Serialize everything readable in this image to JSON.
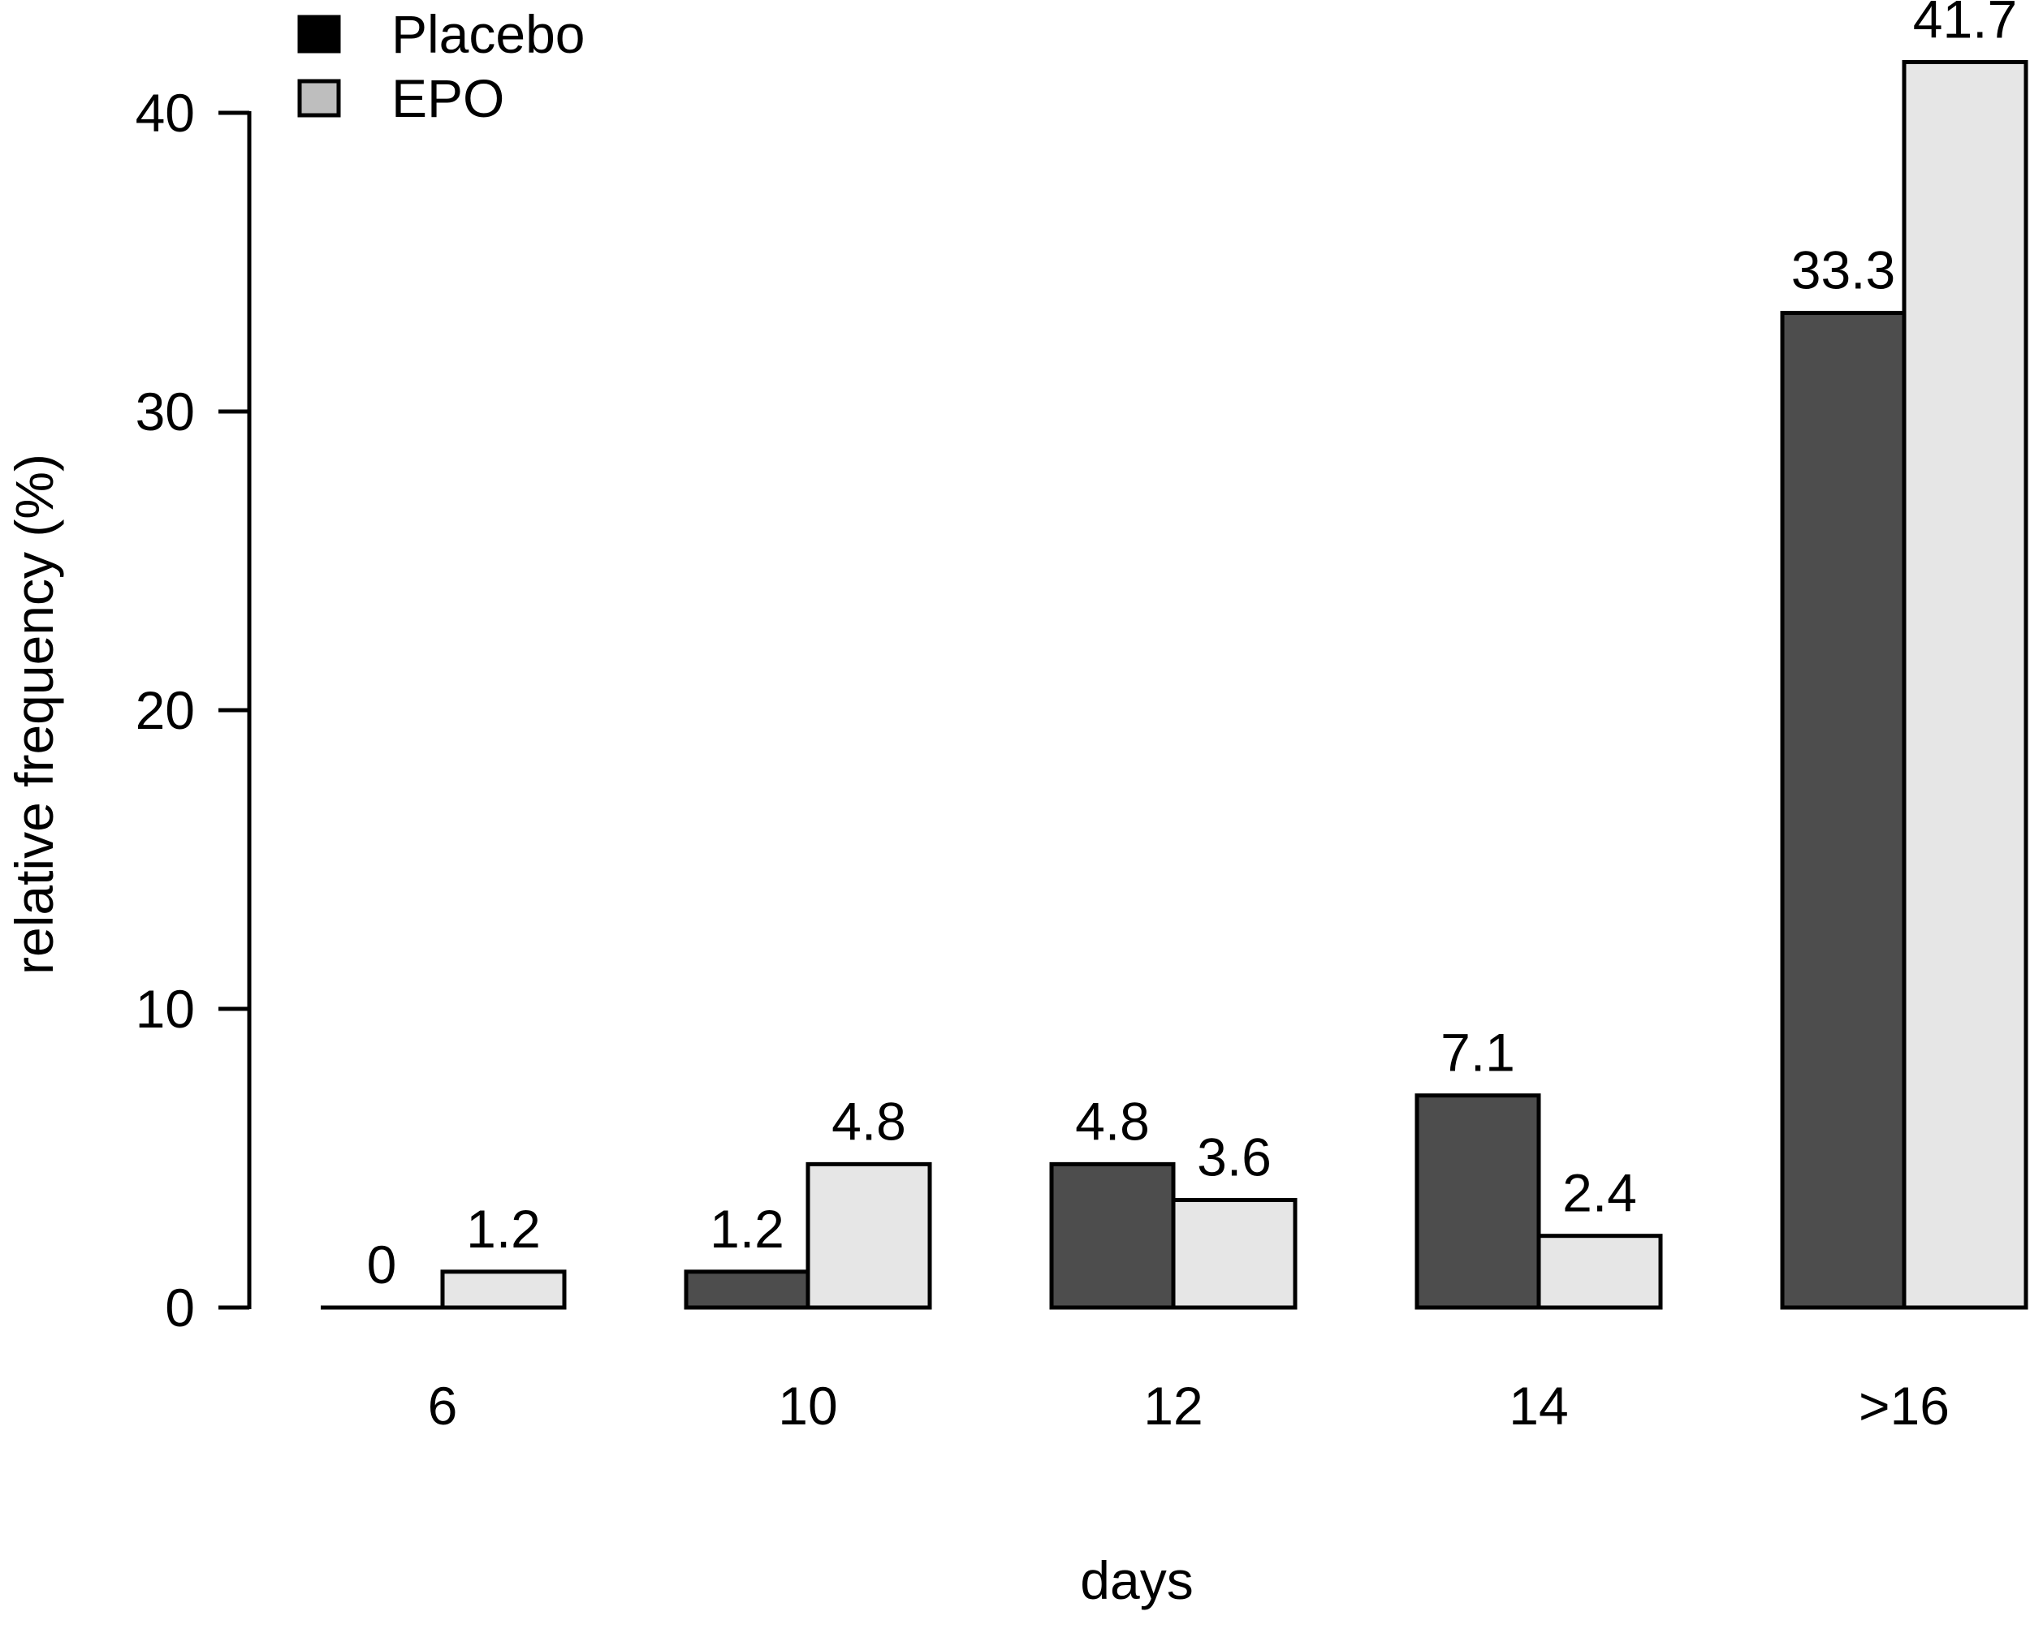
{
  "chart_data": {
    "type": "bar",
    "title": "",
    "xlabel": "days",
    "ylabel": "relative frequency (%)",
    "categories": [
      "6",
      "10",
      "12",
      "14",
      ">16"
    ],
    "series": [
      {
        "name": "Placebo",
        "values": [
          0,
          1.2,
          4.8,
          7.1,
          33.3
        ],
        "labels": [
          "0",
          "1.2",
          "4.8",
          "7.1",
          "33.3"
        ],
        "fill": "#4d4d4d"
      },
      {
        "name": "EPO",
        "values": [
          1.2,
          4.8,
          3.6,
          2.4,
          41.7
        ],
        "labels": [
          "1.2",
          "4.8",
          "3.6",
          "2.4",
          "41.7"
        ],
        "fill": "#e6e6e6"
      }
    ],
    "yticks": [
      "0",
      "10",
      "20",
      "30",
      "40"
    ],
    "ytick_values": [
      0,
      10,
      20,
      30,
      40
    ],
    "ylim": [
      0,
      41.7
    ],
    "grid": false,
    "bar_border_color": "#000000",
    "axis_color": "#000000",
    "legend": {
      "position": "top-left",
      "entries": [
        {
          "label": "Placebo",
          "fill": "#000000"
        },
        {
          "label": "EPO",
          "fill": "#bebebe"
        }
      ]
    }
  }
}
